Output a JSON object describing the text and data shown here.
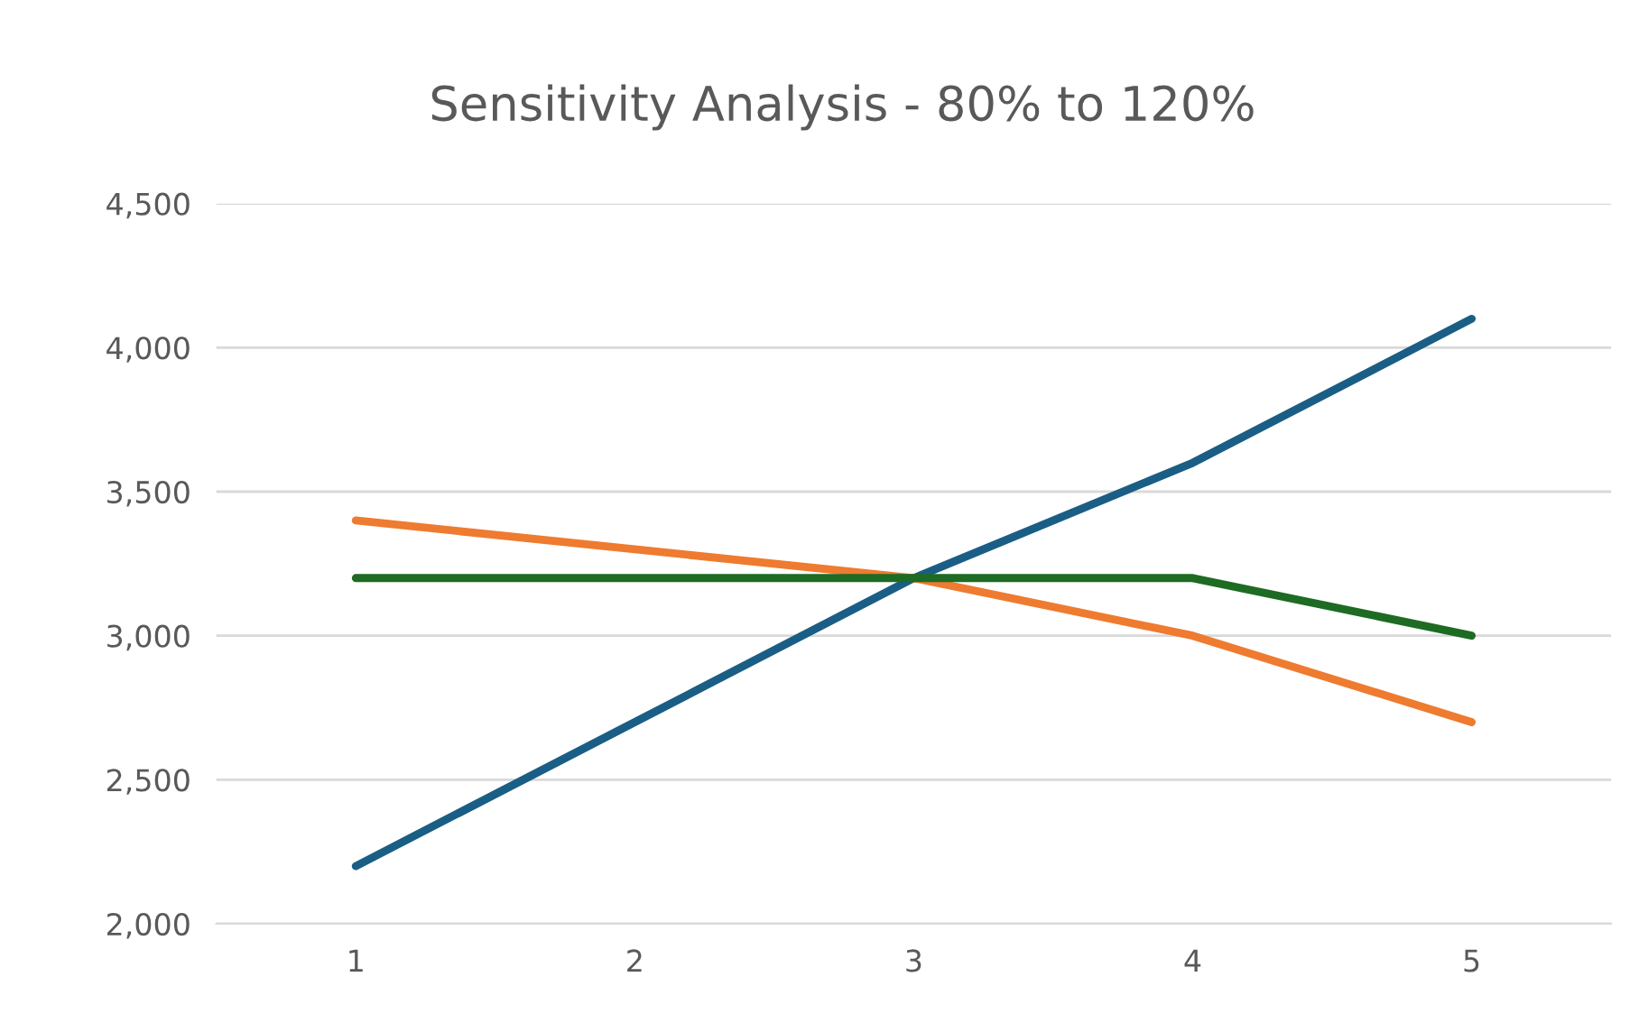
{
  "chart_data": {
    "type": "line",
    "title": "Sensitivity Analysis - 80% to 120%",
    "categories": [
      "1",
      "2",
      "3",
      "4",
      "5"
    ],
    "series": [
      {
        "color": "#1a5e85",
        "values": [
          2200,
          2700,
          3200,
          3600,
          4100
        ]
      },
      {
        "color": "#ee7b30",
        "values": [
          3400,
          3300,
          3200,
          3000,
          2700
        ]
      },
      {
        "color": "#1e6b24",
        "values": [
          3200,
          3200,
          3200,
          3200,
          3000
        ]
      }
    ],
    "ylim": [
      2000,
      4500
    ],
    "yticks": [
      {
        "value": 2000,
        "label": "2,000"
      },
      {
        "value": 2500,
        "label": "2,500"
      },
      {
        "value": 3000,
        "label": "3,000"
      },
      {
        "value": 3500,
        "label": "3,500"
      },
      {
        "value": 4000,
        "label": "4,000"
      },
      {
        "value": 4500,
        "label": "4,500"
      }
    ],
    "grid": "y",
    "marker": "none",
    "line_style": "solid"
  }
}
